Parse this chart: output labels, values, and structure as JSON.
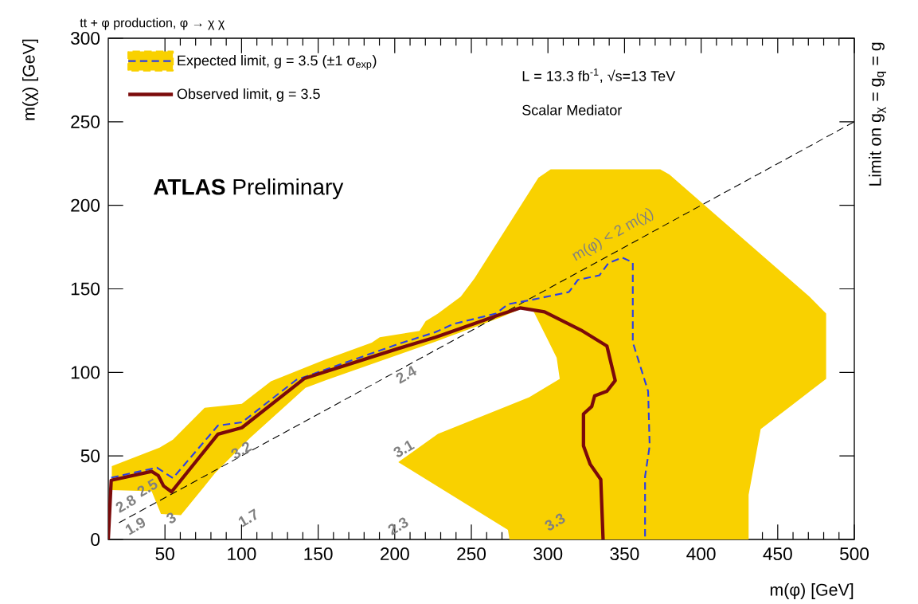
{
  "chart_data": {
    "type": "line",
    "title": "tt + φ production, φ → χ χ",
    "xlabel": "m(φ) [GeV]",
    "ylabel": "m(χ) [GeV]",
    "y2label": "Limit on g$_{χ}$ = g$_{q}$ = g",
    "xlim": [
      13,
      500
    ],
    "ylim": [
      0,
      300
    ],
    "xticks": [
      50,
      100,
      150,
      200,
      250,
      300,
      350,
      400,
      450,
      500
    ],
    "yticks": [
      0,
      50,
      100,
      150,
      200,
      250,
      300
    ],
    "legend": "top left",
    "marker": "none",
    "series": [
      {
        "type": "area",
        "color": "#f9d100",
        "x": [
          15.3,
          46.5,
          55.2,
          75.9,
          100.2,
          119.2,
          153.9,
          185,
          190.2,
          216.2,
          220.2,
          228.2,
          243.1,
          252,
          293.8,
          301.8,
          373.3,
          379.3,
          470.7,
          481.6,
          481.6,
          438.9,
          431,
          431,
          274.9,
          273.9,
          202.3,
          228.2,
          287.8,
          307.7,
          305.7,
          300.7,
          290.8,
          283.8,
          268.2,
          226.6,
          155.6,
          141.7,
          105.3,
          82.9,
          75.9,
          60.4,
          47.4,
          41.3,
          15.3
        ],
        "values": [
          43.9,
          55,
          59.7,
          78.8,
          81.2,
          94.7,
          107.4,
          117.8,
          121,
          124.9,
          130.7,
          135.2,
          145.4,
          156.2,
          216.5,
          221.6,
          221.6,
          218.4,
          145.4,
          135.2,
          96.1,
          66,
          26.7,
          0,
          0,
          5.7,
          46.3,
          63.2,
          85.1,
          96.1,
          108.8,
          118,
          136.2,
          138.6,
          132.6,
          118.4,
          95.5,
          90.7,
          60.6,
          39.9,
          32,
          14.5,
          15.3,
          28.8,
          29.6
        ]
      },
      {
        "color": "#000000",
        "line_style": "dashed",
        "x": [
          20,
          500
        ],
        "values": [
          10,
          250
        ]
      },
      {
        "name": "Expected limit, g = 3.5 (±1 σ$_{exp}$)",
        "color": "#2b3fe6",
        "line_style": "dashed",
        "x": [
          14.9,
          44.8,
          55.2,
          84.6,
          100.2,
          135.7,
          202.3,
          226.6,
          238.1,
          266,
          273.9,
          289.8,
          313.7,
          319.6,
          333.6,
          339.5,
          348.5,
          355.4,
          355.4,
          365.4,
          366.4,
          363.4,
          363.4
        ],
        "values": [
          37,
          43,
          36.7,
          68.2,
          70.1,
          95.5,
          117,
          124.1,
          128.9,
          135.2,
          140.8,
          143.5,
          148.1,
          155.4,
          158.1,
          165.4,
          168.7,
          165.8,
          118,
          88.7,
          56,
          37.7,
          0
        ]
      },
      {
        "name": "Observed limit, g = 3.5",
        "color": "#7b0a0a",
        "line_style": "solid",
        "x": [
          13,
          14.9,
          41.3,
          45.6,
          49.1,
          54.3,
          84.6,
          100.2,
          140.9,
          202.3,
          226.6,
          268,
          281.8,
          297.8,
          321.6,
          338.5,
          343.9,
          338.5,
          330.5,
          328.6,
          323.2,
          323.2,
          327.6,
          334.5,
          336
        ],
        "values": [
          0,
          35.4,
          40.7,
          38.3,
          32,
          28.5,
          63,
          66.9,
          96.3,
          114.3,
          121,
          134.4,
          138.6,
          136.2,
          125.3,
          115.8,
          95.1,
          88.7,
          86,
          79.6,
          75.1,
          56,
          45,
          35.9,
          0
        ]
      }
    ],
    "annotations": [
      "L = 13.3 fb$^{-1}$, √s=13 TeV",
      "Scalar Mediator",
      "**ATLAS** Preliminary",
      "m(φ) < 2 m(χ)",
      "2.4",
      "3.1",
      "3.2",
      "3",
      "1.7",
      "2.3",
      "3.3",
      "2.8",
      "2.5",
      "1.9"
    ]
  }
}
